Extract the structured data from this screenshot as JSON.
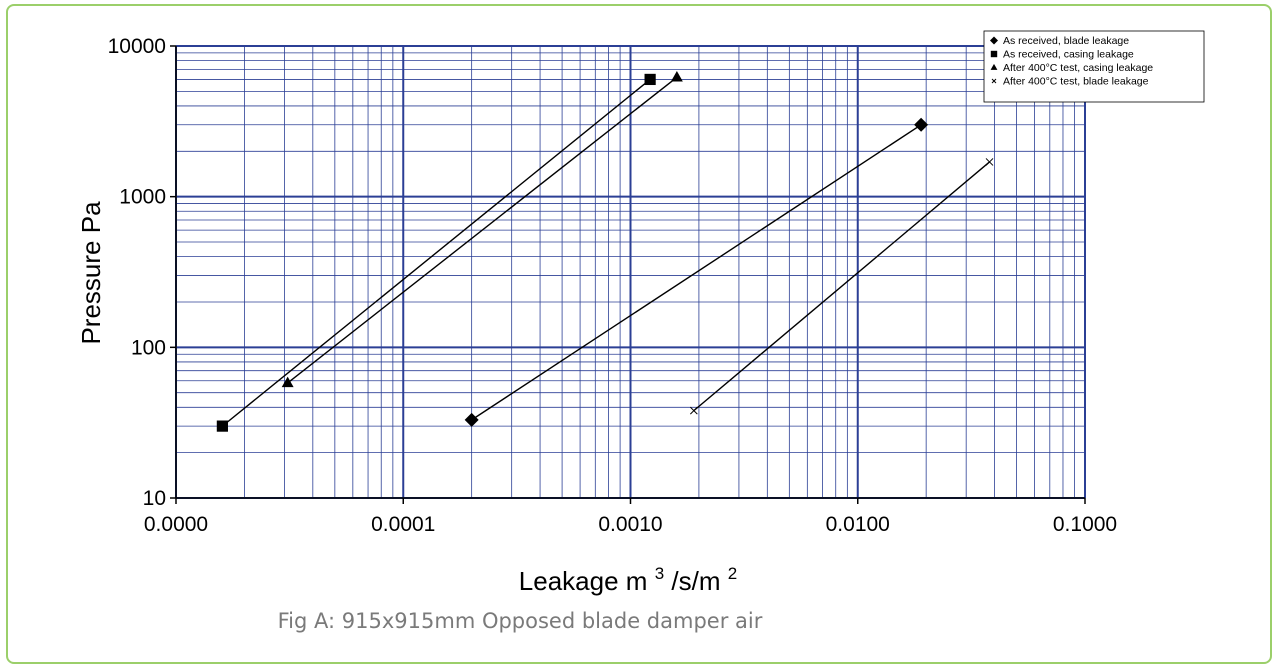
{
  "caption": "Fig A: 915x915mm Opposed blade damper air",
  "colors": {
    "grid": "#2b3f95",
    "frame": "#9bcf6a",
    "series": "#000000"
  },
  "chart_data": {
    "type": "scatter",
    "xscale": "log",
    "yscale": "log",
    "xlim": [
      1e-05,
      0.1
    ],
    "ylim": [
      10,
      10000
    ],
    "xlabel_main": "Leakage m",
    "xlabel_sup1": "3",
    "xlabel_mid": "/s/m",
    "xlabel_sup2": "2",
    "ylabel": "Pressure Pa",
    "xticks": [
      "0.0000",
      "0.0001",
      "0.0010",
      "0.0100",
      "0.1000"
    ],
    "yticks": [
      "10",
      "100",
      "1000",
      "10000"
    ],
    "grid": true,
    "legend_position": "top-right",
    "series": [
      {
        "name": "As received, blade leakage",
        "marker": "diamond",
        "x": [
          0.0002,
          0.019
        ],
        "y": [
          33,
          3000
        ]
      },
      {
        "name": "As received, casing leakage",
        "marker": "square",
        "x": [
          1.6e-05,
          0.00122
        ],
        "y": [
          30,
          6000
        ]
      },
      {
        "name": "After 400°C test, casing leakage",
        "marker": "triangle",
        "x": [
          3.1e-05,
          0.0016
        ],
        "y": [
          58,
          6200
        ]
      },
      {
        "name": "After 400°C test, blade leakage",
        "marker": "x",
        "x": [
          0.0019,
          0.038
        ],
        "y": [
          38,
          1700
        ]
      }
    ]
  }
}
